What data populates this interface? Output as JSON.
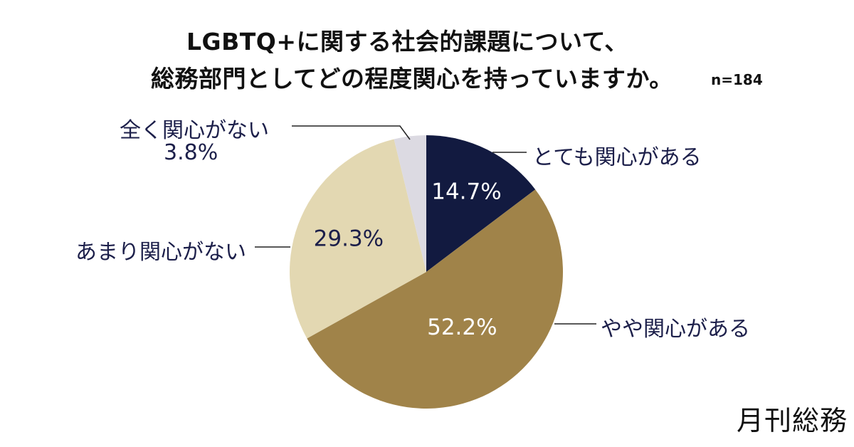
{
  "chart_data": {
    "type": "pie",
    "title": "LGBTQ+に関する社会的課題について、",
    "subtitle": "総務部門としてどの程度関心を持っていますか。",
    "sample_size": "n=184",
    "start_angle_deg": 0,
    "direction": "clockwise",
    "slices": [
      {
        "label": "とても関心がある",
        "value": 14.7,
        "value_label": "14.7%",
        "color": "#121a40",
        "value_color": "#ffffff"
      },
      {
        "label": "やや関心がある",
        "value": 52.2,
        "value_label": "52.2%",
        "color": "#a08349",
        "value_color": "#ffffff"
      },
      {
        "label": "あまり関心がない",
        "value": 29.3,
        "value_label": "29.3%",
        "color": "#e3d8b2",
        "value_color": "#1c1f4a"
      },
      {
        "label": "全く関心がない",
        "value": 3.8,
        "value_label": "3.8%",
        "color": "#dcdae2",
        "value_color": "#1c1f4a"
      }
    ],
    "brand": "月刊総務"
  }
}
